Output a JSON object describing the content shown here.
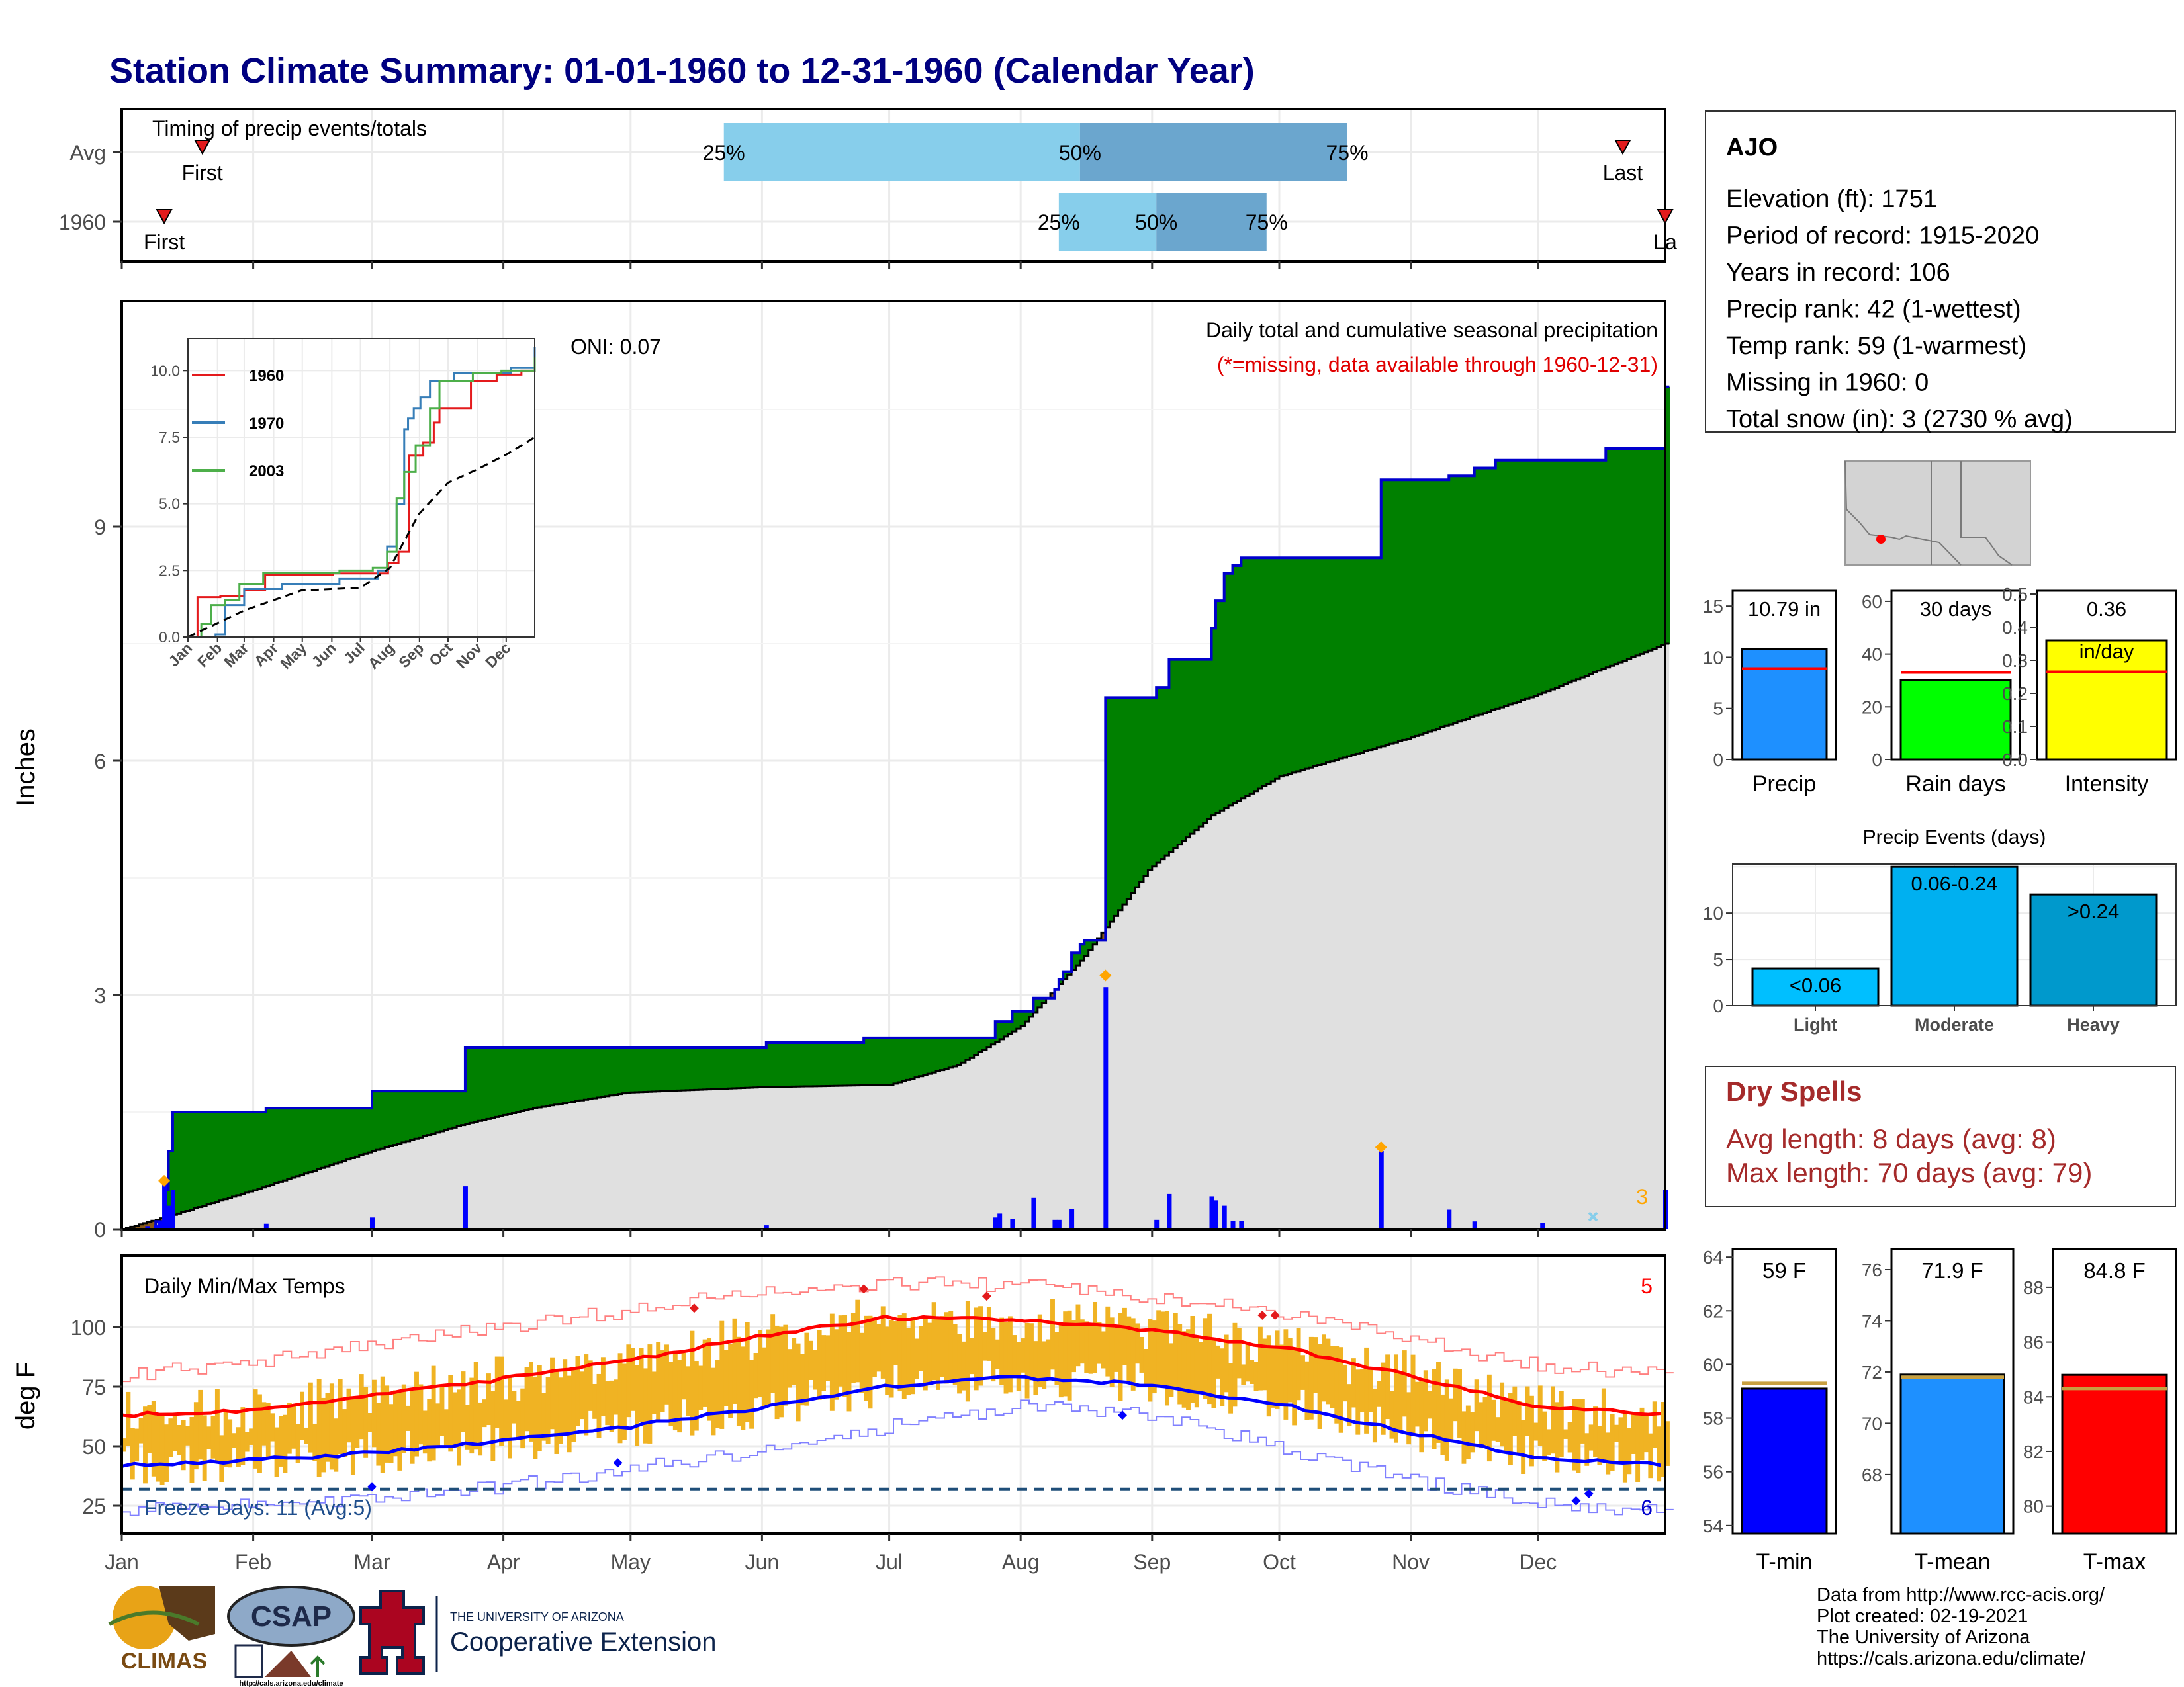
{
  "title": "Station Climate Summary: 01-01-1960 to 12-31-1960 (Calendar Year)",
  "months": [
    "Jan",
    "Feb",
    "Mar",
    "Apr",
    "May",
    "Jun",
    "Jul",
    "Aug",
    "Sep",
    "Oct",
    "Nov",
    "Dec"
  ],
  "timing": {
    "title": "Timing of precip events/totals",
    "rows": [
      {
        "label": "Avg",
        "first_label": "First",
        "first_day": 20,
        "last_label": "Last",
        "last_day": 355,
        "p25": 143,
        "p50": 227,
        "p75": 290,
        "p25_label": "25%",
        "p50_label": "50%",
        "p75_label": "75%"
      },
      {
        "label": "1960",
        "first_label": "First",
        "first_day": 11,
        "last_label": "La",
        "last_day": 365,
        "p25": 222,
        "p50": 245,
        "p75": 271,
        "p25_label": "25%",
        "p50_label": "50%",
        "p75_label": "75%"
      }
    ],
    "colors": {
      "light": "#87ceeb",
      "dark": "#6ba6ce",
      "marker": "#e31a1c"
    }
  },
  "precip": {
    "title": "Daily total and cumulative seasonal precipitation",
    "subtitle": "(*=missing, data available through 1960-12-31)",
    "oni": "ONI: 0.07",
    "ylabel": "Inches",
    "y_ticks": [
      "0",
      "3",
      "6",
      "9"
    ],
    "corner_count": "3",
    "colors": {
      "above": "#008000",
      "below": "#8b5a1a",
      "normal": "#e0e0e0",
      "line": "#0000cd",
      "bars": "#0000ff",
      "snow": "#ffa500"
    }
  },
  "inset": {
    "y_ticks": [
      "0.0",
      "2.5",
      "5.0",
      "7.5",
      "10.0"
    ],
    "legend": [
      {
        "name": "1960",
        "color": "#e41a1c"
      },
      {
        "name": "1970",
        "color": "#377eb8"
      },
      {
        "name": "2003",
        "color": "#4daf4a"
      }
    ]
  },
  "temps": {
    "title": "Daily Min/Max Temps",
    "ylabel": "deg F",
    "y_ticks": [
      "25",
      "50",
      "75",
      "100"
    ],
    "freeze": "Freeze Days: 11 (Avg:5)",
    "count_high": "5",
    "count_low": "6",
    "colors": {
      "bars": "#f0b323",
      "max_avg": "#ff0000",
      "min_avg": "#0000ff",
      "extreme_max": "#ff8080",
      "extreme_min": "#8080ff",
      "freeze_line": "#1f4e79"
    }
  },
  "station": {
    "name": "AJO",
    "lines": [
      "Elevation (ft): 1751",
      "Period of record: 1915-2020",
      "Years in record: 106",
      "Precip rank: 42 (1-wettest)",
      "Temp rank: 59 (1-warmest)",
      "Missing in 1960: 0",
      "Total snow (in): 3 (2730 % avg)"
    ]
  },
  "summary_bars": [
    {
      "label": "Precip",
      "value_label": "10.79 in",
      "value": 10.79,
      "avg": 8.9,
      "ymax": 16.5,
      "ticks": [
        "0",
        "5",
        "10",
        "15"
      ],
      "tick_vals": [
        0,
        5,
        10,
        15
      ],
      "color": "#1e90ff"
    },
    {
      "label": "Rain days",
      "value_label": "30 days",
      "value": 30,
      "avg": 33,
      "ymax": 64,
      "ticks": [
        "0",
        "20",
        "40",
        "60"
      ],
      "tick_vals": [
        0,
        20,
        40,
        60
      ],
      "color": "#00ff00"
    },
    {
      "label": "Intensity",
      "value_label": "0.36",
      "value_label2": "in/day",
      "value": 0.36,
      "avg": 0.265,
      "ymax": 0.51,
      "ticks": [
        "0.0",
        "0.1",
        "0.2",
        "0.3",
        "0.4",
        "0.5"
      ],
      "tick_vals": [
        0,
        0.1,
        0.2,
        0.3,
        0.4,
        0.5
      ],
      "color": "#ffff00"
    }
  ],
  "events": {
    "title": "Precip Events (days)",
    "categories": [
      "Light",
      "Moderate",
      "Heavy"
    ],
    "labels": [
      "<0.06",
      "0.06-0.24",
      ">0.24"
    ],
    "values": [
      4,
      15,
      12
    ],
    "ymax": 15.3,
    "ticks": [
      "0",
      "5",
      "10"
    ],
    "colors": [
      "#00bfff",
      "#00b0f0",
      "#0099cc"
    ]
  },
  "dry_spells": {
    "title": "Dry Spells",
    "avg": "Avg length: 8 days (avg: 8)",
    "max": "Max length: 70 days (avg: 79)",
    "color": "#a52a2a"
  },
  "temp_bars": [
    {
      "label": "T-min",
      "value_label": "59 F",
      "value": 59.1,
      "avg": 59.3,
      "ymin": 53.7,
      "ymax": 64.3,
      "ticks": [
        "54",
        "56",
        "58",
        "60",
        "62",
        "64"
      ],
      "tick_vals": [
        54,
        56,
        58,
        60,
        62,
        64
      ],
      "color": "#0000ff"
    },
    {
      "label": "T-mean",
      "value_label": "71.9 F",
      "value": 71.9,
      "avg": 71.8,
      "ymin": 65.7,
      "ymax": 76.8,
      "ticks": [
        "68",
        "70",
        "72",
        "74",
        "76"
      ],
      "tick_vals": [
        68,
        70,
        72,
        74,
        76
      ],
      "color": "#1e90ff"
    },
    {
      "label": "T-max",
      "value_label": "84.8 F",
      "value": 84.8,
      "avg": 84.3,
      "ymin": 79.0,
      "ymax": 89.4,
      "ticks": [
        "80",
        "82",
        "84",
        "86",
        "88"
      ],
      "tick_vals": [
        80,
        82,
        84,
        86,
        88
      ],
      "color": "#ff0000"
    }
  ],
  "credits": [
    "Data from http://www.rcc-acis.org/",
    "Plot created: 02-19-2021",
    "The University of Arizona",
    "https://cals.arizona.edu/climate/"
  ],
  "logos": {
    "climas": "CLIMAS",
    "csap": "CSAP",
    "csap_url": "http://cals.arizona.edu/climate",
    "ua_small": "THE UNIVERSITY OF ARIZONA",
    "ua_big": "Cooperative Extension"
  },
  "chart_data": [
    {
      "type": "bar",
      "title": "Timing of precip events/totals",
      "x_unit": "day of year",
      "categories": [
        "Avg",
        "1960"
      ],
      "series": [
        {
          "name": "First",
          "values": [
            20,
            11
          ]
        },
        {
          "name": "25%",
          "values": [
            143,
            222
          ]
        },
        {
          "name": "50%",
          "values": [
            227,
            245
          ]
        },
        {
          "name": "75%",
          "values": [
            290,
            271
          ]
        },
        {
          "name": "Last",
          "values": [
            355,
            365
          ]
        }
      ]
    },
    {
      "type": "area",
      "title": "Daily total and cumulative seasonal precipitation",
      "ylabel": "Inches",
      "ylim": [
        0,
        12
      ],
      "cumulative_1960": [
        [
          1,
          0
        ],
        [
          9,
          0.1
        ],
        [
          11,
          0.5
        ],
        [
          12,
          1.0
        ],
        [
          13,
          1.5
        ],
        [
          35,
          1.55
        ],
        [
          60,
          1.77
        ],
        [
          82,
          2.33
        ],
        [
          153,
          2.39
        ],
        [
          176,
          2.45
        ],
        [
          207,
          2.66
        ],
        [
          211,
          2.79
        ],
        [
          216,
          2.96
        ],
        [
          221,
          3.07
        ],
        [
          222,
          3.2
        ],
        [
          223,
          3.3
        ],
        [
          225,
          3.54
        ],
        [
          227,
          3.65
        ],
        [
          228,
          3.7
        ],
        [
          232,
          3.7
        ],
        [
          233,
          6.81
        ],
        [
          245,
          6.94
        ],
        [
          248,
          7.3
        ],
        [
          249,
          7.3
        ],
        [
          258,
          7.7
        ],
        [
          259,
          8.05
        ],
        [
          261,
          8.4
        ],
        [
          263,
          8.5
        ],
        [
          265,
          8.6
        ],
        [
          298,
          9.6
        ],
        [
          314,
          9.65
        ],
        [
          320,
          9.75
        ],
        [
          325,
          9.85
        ],
        [
          336,
          9.85
        ],
        [
          351,
          10.0
        ],
        [
          364,
          10.0
        ],
        [
          365,
          10.79
        ]
      ],
      "normal": [
        [
          1,
          0
        ],
        [
          14,
          0.2
        ],
        [
          32,
          0.5
        ],
        [
          60,
          1.0
        ],
        [
          82,
          1.35
        ],
        [
          98,
          1.55
        ],
        [
          120,
          1.75
        ],
        [
          152,
          1.82
        ],
        [
          182,
          1.85
        ],
        [
          198,
          2.1
        ],
        [
          213,
          2.6
        ],
        [
          228,
          3.5
        ],
        [
          243,
          4.6
        ],
        [
          258,
          5.3
        ],
        [
          274,
          5.8
        ],
        [
          305,
          6.3
        ],
        [
          335,
          6.85
        ],
        [
          365,
          7.5
        ]
      ],
      "daily_bars": [
        [
          7,
          0.04
        ],
        [
          9,
          0.05
        ],
        [
          10,
          0.1
        ],
        [
          11,
          0.62
        ],
        [
          12,
          0.3
        ],
        [
          13,
          0.5
        ],
        [
          35,
          0.07
        ],
        [
          60,
          0.15
        ],
        [
          82,
          0.55
        ],
        [
          153,
          0.05
        ],
        [
          207,
          0.15
        ],
        [
          208,
          0.2
        ],
        [
          211,
          0.13
        ],
        [
          216,
          0.4
        ],
        [
          221,
          0.12
        ],
        [
          222,
          0.12
        ],
        [
          225,
          0.26
        ],
        [
          233,
          3.1
        ],
        [
          245,
          0.12
        ],
        [
          248,
          0.45
        ],
        [
          258,
          0.42
        ],
        [
          259,
          0.37
        ],
        [
          261,
          0.3
        ],
        [
          263,
          0.11
        ],
        [
          265,
          0.11
        ],
        [
          298,
          1.0
        ],
        [
          314,
          0.25
        ],
        [
          320,
          0.1
        ],
        [
          336,
          0.08
        ],
        [
          365,
          0.5
        ]
      ],
      "snow_days": [
        [
          11,
          0.62
        ],
        [
          233,
          3.25
        ],
        [
          298,
          1.05
        ]
      ]
    },
    {
      "type": "line",
      "title": "Inset cumulative precipitation (1960, 1970, 2003)",
      "ylim": [
        0,
        11
      ],
      "series": [
        {
          "name": "1960",
          "values": [
            [
              1,
              0
            ],
            [
              11,
              1.5
            ],
            [
              35,
              1.55
            ],
            [
              60,
              1.77
            ],
            [
              82,
              2.33
            ],
            [
              153,
              2.39
            ],
            [
              211,
              2.79
            ],
            [
              222,
              3.2
            ],
            [
              233,
              6.81
            ],
            [
              248,
              7.3
            ],
            [
              259,
              8.05
            ],
            [
              265,
              8.6
            ],
            [
              298,
              9.6
            ],
            [
              325,
              9.85
            ],
            [
              351,
              10.0
            ],
            [
              365,
              10.79
            ]
          ]
        },
        {
          "name": "1970",
          "values": [
            [
              1,
              0
            ],
            [
              30,
              0.1
            ],
            [
              40,
              1.2
            ],
            [
              60,
              1.8
            ],
            [
              100,
              2.0
            ],
            [
              160,
              2.2
            ],
            [
              200,
              2.5
            ],
            [
              210,
              3.4
            ],
            [
              220,
              5.0
            ],
            [
              228,
              7.8
            ],
            [
              232,
              8.2
            ],
            [
              238,
              8.6
            ],
            [
              245,
              9.0
            ],
            [
              255,
              9.6
            ],
            [
              280,
              9.9
            ],
            [
              340,
              10.1
            ],
            [
              365,
              10.9
            ]
          ]
        },
        {
          "name": "2003",
          "values": [
            [
              1,
              0
            ],
            [
              15,
              0.5
            ],
            [
              25,
              1.2
            ],
            [
              40,
              1.4
            ],
            [
              55,
              2.0
            ],
            [
              80,
              2.4
            ],
            [
              160,
              2.5
            ],
            [
              195,
              2.6
            ],
            [
              210,
              3.2
            ],
            [
              220,
              5.2
            ],
            [
              228,
              6.2
            ],
            [
              240,
              7.2
            ],
            [
              255,
              8.6
            ],
            [
              265,
              9.6
            ],
            [
              300,
              9.9
            ],
            [
              330,
              10.0
            ],
            [
              365,
              10.5
            ]
          ]
        },
        {
          "name": "normal",
          "values": [
            [
              1,
              0
            ],
            [
              60,
              1.0
            ],
            [
              120,
              1.75
            ],
            [
              182,
              1.85
            ],
            [
              213,
              2.6
            ],
            [
              243,
              4.6
            ],
            [
              274,
              5.8
            ],
            [
              305,
              6.3
            ],
            [
              335,
              6.85
            ],
            [
              365,
              7.5
            ]
          ]
        }
      ]
    },
    {
      "type": "line",
      "title": "Daily Min/Max Temps",
      "ylabel": "deg F",
      "ylim": [
        18,
        121
      ],
      "avg_max": [
        [
          1,
          63
        ],
        [
          31,
          65
        ],
        [
          59,
          71
        ],
        [
          90,
          78
        ],
        [
          120,
          86
        ],
        [
          151,
          96
        ],
        [
          181,
          104
        ],
        [
          212,
          103
        ],
        [
          243,
          99
        ],
        [
          273,
          92
        ],
        [
          304,
          80
        ],
        [
          334,
          67
        ],
        [
          365,
          63
        ]
      ],
      "avg_min": [
        [
          1,
          42
        ],
        [
          31,
          44
        ],
        [
          59,
          47
        ],
        [
          90,
          52
        ],
        [
          120,
          58
        ],
        [
          151,
          66
        ],
        [
          181,
          75
        ],
        [
          212,
          79
        ],
        [
          243,
          76
        ],
        [
          273,
          68
        ],
        [
          304,
          56
        ],
        [
          334,
          45
        ],
        [
          365,
          42
        ]
      ],
      "record_max": [
        [
          1,
          80
        ],
        [
          31,
          85
        ],
        [
          59,
          92
        ],
        [
          90,
          100
        ],
        [
          120,
          107
        ],
        [
          151,
          115
        ],
        [
          181,
          118
        ],
        [
          212,
          118
        ],
        [
          243,
          113
        ],
        [
          273,
          107
        ],
        [
          304,
          95
        ],
        [
          334,
          84
        ],
        [
          365,
          80
        ]
      ],
      "record_min": [
        [
          1,
          23
        ],
        [
          31,
          25
        ],
        [
          59,
          28
        ],
        [
          90,
          33
        ],
        [
          120,
          40
        ],
        [
          151,
          48
        ],
        [
          181,
          58
        ],
        [
          212,
          67
        ],
        [
          243,
          63
        ],
        [
          273,
          50
        ],
        [
          304,
          36
        ],
        [
          334,
          26
        ],
        [
          365,
          23
        ]
      ],
      "freeze_threshold": 32
    }
  ]
}
